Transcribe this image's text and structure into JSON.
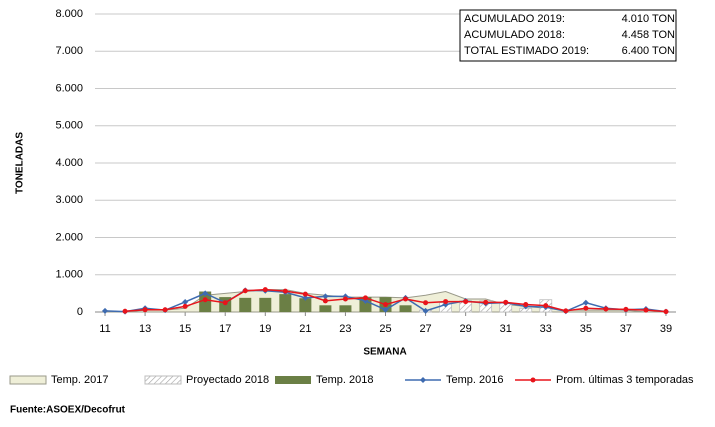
{
  "chart_data": {
    "type": "combo",
    "y_label": "TONELADAS",
    "x_label": "SEMANA",
    "source": "Fuente:ASOEX/Decofrut",
    "annotations": [
      {
        "label": "ACUMULADO 2019:",
        "value": "4.010 TON"
      },
      {
        "label": "ACUMULADO 2018:",
        "value": "4.458 TON"
      },
      {
        "label": "TOTAL ESTIMADO 2019:",
        "value": "6.400 TON"
      }
    ],
    "x": [
      11,
      12,
      13,
      14,
      15,
      16,
      17,
      18,
      19,
      20,
      21,
      22,
      23,
      24,
      25,
      26,
      27,
      28,
      29,
      30,
      31,
      32,
      33,
      34,
      35,
      36,
      37,
      38,
      39
    ],
    "xlim": [
      10.5,
      39.5
    ],
    "xticks": [
      11,
      13,
      15,
      17,
      19,
      21,
      23,
      25,
      27,
      29,
      31,
      33,
      35,
      37,
      39
    ],
    "ylim": [
      0,
      8000
    ],
    "yticks": [
      0,
      {
        "value": 1000,
        "label": "1.000"
      },
      {
        "value": 2000,
        "label": "2.000"
      },
      {
        "value": 3000,
        "label": "3.000"
      },
      {
        "value": 4000,
        "label": "4.000"
      },
      {
        "value": 5000,
        "label": "5.000"
      },
      {
        "value": 6000,
        "label": "6.000"
      },
      {
        "value": 7000,
        "label": "7.000"
      },
      {
        "value": 8000,
        "label": "8.000"
      }
    ],
    "grid": true,
    "legend": "bottom",
    "series": [
      {
        "name": "Temp. 2017",
        "type": "area",
        "color": "#efefd8",
        "values": [
          0,
          0,
          50,
          50,
          100,
          450,
          500,
          550,
          600,
          600,
          500,
          450,
          400,
          400,
          400,
          380,
          450,
          550,
          350,
          350,
          200,
          150,
          100,
          50,
          50,
          50,
          50,
          0,
          0
        ]
      },
      {
        "name": "Proyectado 2018",
        "type": "bar",
        "hatch": true,
        "color": "#bdbdbd",
        "values": [
          null,
          null,
          null,
          null,
          null,
          null,
          null,
          null,
          null,
          null,
          null,
          null,
          null,
          null,
          null,
          null,
          50,
          250,
          300,
          300,
          250,
          100,
          330,
          null,
          null,
          null,
          null,
          null,
          null
        ]
      },
      {
        "name": "Temp. 2018",
        "type": "bar",
        "color": "#6b7f45",
        "values": [
          null,
          null,
          null,
          null,
          null,
          550,
          400,
          380,
          380,
          480,
          370,
          180,
          180,
          400,
          400,
          180,
          null,
          null,
          null,
          null,
          null,
          null,
          null,
          null,
          null,
          null,
          null,
          null,
          null
        ]
      },
      {
        "name": "Temp. 2016",
        "type": "line",
        "color": "#3e6bb0",
        "values": [
          30,
          10,
          100,
          50,
          270,
          500,
          250,
          580,
          570,
          530,
          380,
          420,
          420,
          300,
          60,
          380,
          30,
          200,
          300,
          230,
          250,
          150,
          130,
          20,
          250,
          100,
          60,
          80,
          10
        ]
      },
      {
        "name": "Prom. últimas 3 temporadas",
        "type": "line",
        "color": "#e8141b",
        "values": [
          null,
          20,
          60,
          60,
          150,
          330,
          250,
          570,
          600,
          560,
          480,
          300,
          350,
          380,
          200,
          350,
          250,
          280,
          280,
          260,
          260,
          200,
          170,
          30,
          100,
          80,
          70,
          50,
          10
        ]
      }
    ]
  }
}
